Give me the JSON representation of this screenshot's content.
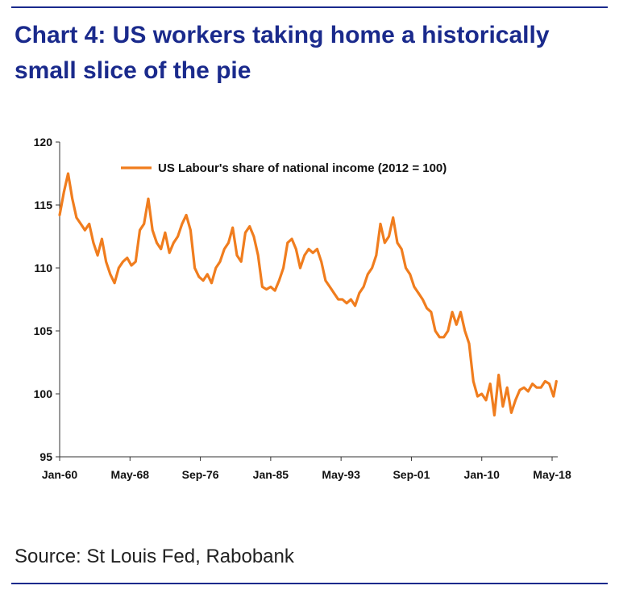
{
  "title": "Chart 4: US workers taking home a historically small slice of the pie",
  "source": "Source: St Louis Fed, Rabobank",
  "colors": {
    "accent": "#1a2a8c",
    "series": "#f07d1e"
  },
  "chart_data": {
    "type": "line",
    "title": "Chart 4: US workers taking home a historically small slice of the pie",
    "xlabel": "",
    "ylabel": "",
    "ylim": [
      95,
      120
    ],
    "yticks": [
      95,
      100,
      105,
      110,
      115,
      120
    ],
    "xlim": [
      "1960-01",
      "2019-01"
    ],
    "xticks": [
      "Jan-60",
      "May-68",
      "Sep-76",
      "Jan-85",
      "May-93",
      "Sep-01",
      "Jan-10",
      "May-18"
    ],
    "grid": false,
    "legend": {
      "placement": "top-center"
    },
    "series": [
      {
        "name": "US Labour's share of national income (2012 = 100)",
        "color": "#f07d1e",
        "x": [
          "1960-01",
          "1960-07",
          "1961-01",
          "1961-07",
          "1962-01",
          "1962-07",
          "1963-01",
          "1963-07",
          "1964-01",
          "1964-07",
          "1965-01",
          "1965-07",
          "1966-01",
          "1966-07",
          "1967-01",
          "1967-07",
          "1968-01",
          "1968-07",
          "1969-01",
          "1969-07",
          "1970-01",
          "1970-07",
          "1971-01",
          "1971-07",
          "1972-01",
          "1972-07",
          "1973-01",
          "1973-07",
          "1974-01",
          "1974-07",
          "1975-01",
          "1975-07",
          "1976-01",
          "1976-07",
          "1977-01",
          "1977-07",
          "1978-01",
          "1978-07",
          "1979-01",
          "1979-07",
          "1980-01",
          "1980-07",
          "1981-01",
          "1981-07",
          "1982-01",
          "1982-07",
          "1983-01",
          "1983-07",
          "1984-01",
          "1984-07",
          "1985-01",
          "1985-07",
          "1986-01",
          "1986-07",
          "1987-01",
          "1987-07",
          "1988-01",
          "1988-07",
          "1989-01",
          "1989-07",
          "1990-01",
          "1990-07",
          "1991-01",
          "1991-07",
          "1992-01",
          "1992-07",
          "1993-01",
          "1993-07",
          "1994-01",
          "1994-07",
          "1995-01",
          "1995-07",
          "1996-01",
          "1996-07",
          "1997-01",
          "1997-07",
          "1998-01",
          "1998-07",
          "1999-01",
          "1999-07",
          "2000-01",
          "2000-07",
          "2001-01",
          "2001-07",
          "2002-01",
          "2002-07",
          "2003-01",
          "2003-07",
          "2004-01",
          "2004-07",
          "2005-01",
          "2005-07",
          "2006-01",
          "2006-07",
          "2007-01",
          "2007-07",
          "2008-01",
          "2008-07",
          "2009-01",
          "2009-07",
          "2010-01",
          "2010-07",
          "2011-01",
          "2011-07",
          "2012-01",
          "2012-07",
          "2013-01",
          "2013-07",
          "2014-01",
          "2014-07",
          "2015-01",
          "2015-07",
          "2016-01",
          "2016-07",
          "2017-01",
          "2017-07",
          "2018-01",
          "2018-07",
          "2018-11"
        ],
        "values": [
          114.2,
          116.0,
          117.5,
          115.5,
          114.0,
          113.5,
          113.0,
          113.5,
          112.0,
          111.0,
          112.3,
          110.5,
          109.5,
          108.8,
          110.0,
          110.5,
          110.8,
          110.2,
          110.5,
          113.0,
          113.5,
          115.5,
          113.0,
          112.0,
          111.5,
          112.8,
          111.2,
          112.0,
          112.5,
          113.5,
          114.2,
          113.0,
          110.0,
          109.3,
          109.0,
          109.5,
          108.8,
          110.0,
          110.5,
          111.5,
          112.0,
          113.2,
          111.0,
          110.5,
          112.8,
          113.3,
          112.5,
          111.0,
          108.5,
          108.3,
          108.5,
          108.2,
          109.0,
          110.0,
          112.0,
          112.3,
          111.5,
          110.0,
          111.0,
          111.5,
          111.2,
          111.5,
          110.5,
          109.0,
          108.5,
          108.0,
          107.5,
          107.5,
          107.2,
          107.5,
          107.0,
          108.0,
          108.5,
          109.5,
          110.0,
          111.0,
          113.5,
          112.0,
          112.5,
          114.0,
          112.0,
          111.5,
          110.0,
          109.5,
          108.5,
          108.0,
          107.5,
          106.8,
          106.5,
          105.0,
          104.5,
          104.5,
          105.0,
          106.5,
          105.5,
          106.5,
          105.0,
          104.0,
          101.0,
          99.8,
          100.0,
          99.5,
          100.8,
          98.3,
          101.5,
          99.0,
          100.5,
          98.5,
          99.5,
          100.3,
          100.5,
          100.2,
          100.8,
          100.5,
          100.5,
          101.0,
          100.8,
          99.8,
          101.0
        ]
      }
    ]
  }
}
